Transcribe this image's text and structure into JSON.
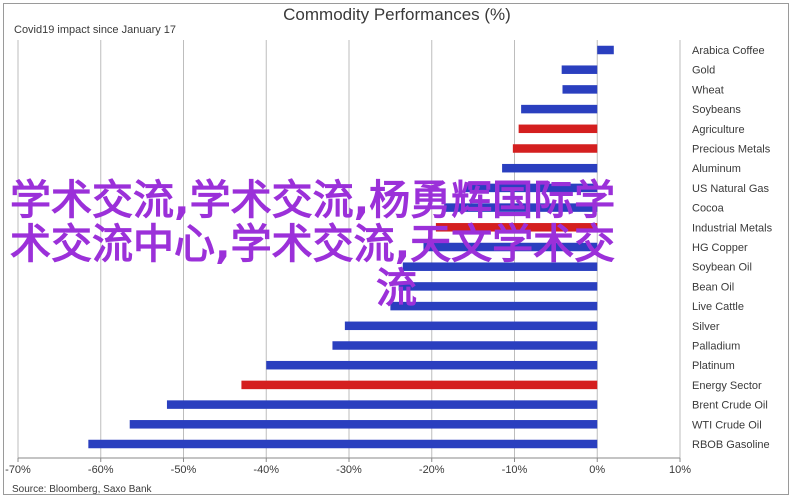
{
  "title": "Commodity Performances (%)",
  "subtitle": "Covid19 impact since January 17",
  "source": "Source: Bloomberg, Saxo Bank",
  "overlay": {
    "line1": "学术交流,学术交流,杨勇辉国际学",
    "line2": "术交流中心,学术交流,天文学术交",
    "line3": "流",
    "color": "#9b30d9"
  },
  "colors": {
    "blue": "#2a3fbf",
    "red": "#d41f1f",
    "grid": "#bdbdbd"
  },
  "chart_data": {
    "type": "bar",
    "orientation": "horizontal",
    "title": "Commodity Performances (%)",
    "xlim": [
      -70,
      10
    ],
    "xticks": [
      -70,
      -60,
      -50,
      -40,
      -30,
      -20,
      -10,
      0,
      10
    ],
    "xtick_labels": [
      "-70%",
      "-60%",
      "-50%",
      "-40%",
      "-30%",
      "-20%",
      "-10%",
      "0%",
      "10%"
    ],
    "grid": true,
    "categories": [
      "Arabica Coffee",
      "Gold",
      "Wheat",
      "Soybeans",
      "Agriculture",
      "Precious Metals",
      "Aluminum",
      "US Natural Gas",
      "Cocoa",
      "Industrial Metals",
      "HG Copper",
      "Soybean Oil",
      "Bean Oil",
      "Live Cattle",
      "Silver",
      "Palladium",
      "Platinum",
      "Energy Sector",
      "Brent Crude Oil",
      "WTI Crude Oil",
      "RBOB Gasoline"
    ],
    "values": [
      2,
      -4.3,
      -4.2,
      -9.2,
      -9.5,
      -10.2,
      -11.5,
      -16,
      -18.5,
      -19.5,
      -21,
      -23.5,
      -24,
      -25,
      -30.5,
      -32,
      -40,
      -43,
      -52,
      -56.5,
      -61.5
    ],
    "bar_colors": [
      "blue",
      "blue",
      "blue",
      "blue",
      "red",
      "red",
      "blue",
      "blue",
      "blue",
      "red",
      "blue",
      "blue",
      "blue",
      "blue",
      "blue",
      "blue",
      "blue",
      "red",
      "blue",
      "blue",
      "blue"
    ]
  }
}
